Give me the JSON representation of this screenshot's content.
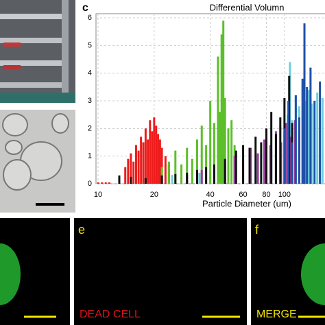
{
  "chart_data": {
    "type": "bar",
    "panel_label": "c",
    "title": "Differential Volumn",
    "x_label": "Particle Diameter (um)",
    "log_x": true,
    "grid": true,
    "xlim": [
      9.75,
      165
    ],
    "ylim": [
      0,
      6.15
    ],
    "xticks": [
      10,
      20,
      40,
      60,
      80,
      100
    ],
    "yticks": [
      0,
      1,
      2,
      3,
      4,
      5,
      6
    ],
    "series": [
      {
        "color": "#6ccfdc",
        "x": [
          13,
          16,
          20,
          25,
          30,
          35,
          40,
          45,
          50,
          55,
          60,
          65,
          70,
          75,
          80,
          85,
          90,
          95,
          100,
          104,
          107,
          110,
          115,
          120,
          125,
          130,
          135,
          140,
          150,
          160
        ],
        "values": [
          0.3,
          0.3,
          0.3,
          0.32,
          0.35,
          0.4,
          0.45,
          0.5,
          0.55,
          0.6,
          0.7,
          0.8,
          0.9,
          1.1,
          1.3,
          1.2,
          1.6,
          2.1,
          1.8,
          2.5,
          4.4,
          2.3,
          3.2,
          2.8,
          3.6,
          3.0,
          3.4,
          2.9,
          3.3,
          3.1
        ]
      },
      {
        "color": "#ee1c1c",
        "x": [
          10,
          10.5,
          11,
          11.5,
          14,
          14.5,
          15,
          15.5,
          16,
          16.5,
          17,
          17.5,
          18,
          18.5,
          19,
          19.5,
          20,
          20.5,
          21,
          21.5,
          22,
          23,
          24
        ],
        "values": [
          0.05,
          0.05,
          0.05,
          0.05,
          0.6,
          0.9,
          1.1,
          0.8,
          1.4,
          1.2,
          1.7,
          1.5,
          2.0,
          1.6,
          2.3,
          1.9,
          2.4,
          2.1,
          1.8,
          1.6,
          1.3,
          1.0,
          0.7
        ]
      },
      {
        "color": "#5cbf2a",
        "x": [
          22,
          24,
          26,
          28,
          30,
          32,
          34,
          36,
          38,
          40,
          42,
          44,
          45,
          46,
          47,
          48,
          50,
          52,
          54
        ],
        "values": [
          0.6,
          0.8,
          1.2,
          0.7,
          1.3,
          0.9,
          1.6,
          2.1,
          1.4,
          3.0,
          2.2,
          4.6,
          2.6,
          5.4,
          5.9,
          3.1,
          2.0,
          2.3,
          1.4
        ]
      },
      {
        "color": "#9a3f9a",
        "x": [
          30,
          36,
          42,
          48,
          54,
          60,
          66,
          72,
          78,
          84,
          90,
          96,
          102,
          108,
          114,
          120,
          126
        ],
        "values": [
          0.3,
          0.5,
          0.6,
          0.8,
          1.0,
          0.9,
          1.3,
          1.1,
          1.6,
          1.4,
          1.9,
          1.5,
          2.2,
          1.7,
          2.3,
          1.9,
          1.8
        ]
      },
      {
        "color": "#111111",
        "x": [
          13,
          15,
          18,
          22,
          26,
          30,
          34,
          38,
          42,
          48,
          55,
          60,
          65,
          70,
          75,
          80,
          85,
          90,
          95,
          100,
          106,
          110
        ],
        "values": [
          0.3,
          0.25,
          0.2,
          0.3,
          0.35,
          0.4,
          0.5,
          0.6,
          0.7,
          0.9,
          1.2,
          1.4,
          1.3,
          1.7,
          1.5,
          2.0,
          2.6,
          1.8,
          2.4,
          3.1,
          3.9,
          2.2
        ]
      },
      {
        "color": "#1f4fa8",
        "x": [
          100,
          105,
          110,
          115,
          120,
          125,
          128,
          132,
          138,
          145,
          155
        ],
        "values": [
          2.0,
          3.0,
          1.5,
          3.2,
          2.4,
          3.8,
          5.8,
          3.5,
          4.2,
          3.0,
          3.7
        ]
      }
    ]
  },
  "panels": [
    {
      "label": "e",
      "caption": "DEAD CELL"
    },
    {
      "label": "f",
      "caption": "MERGE"
    }
  ]
}
